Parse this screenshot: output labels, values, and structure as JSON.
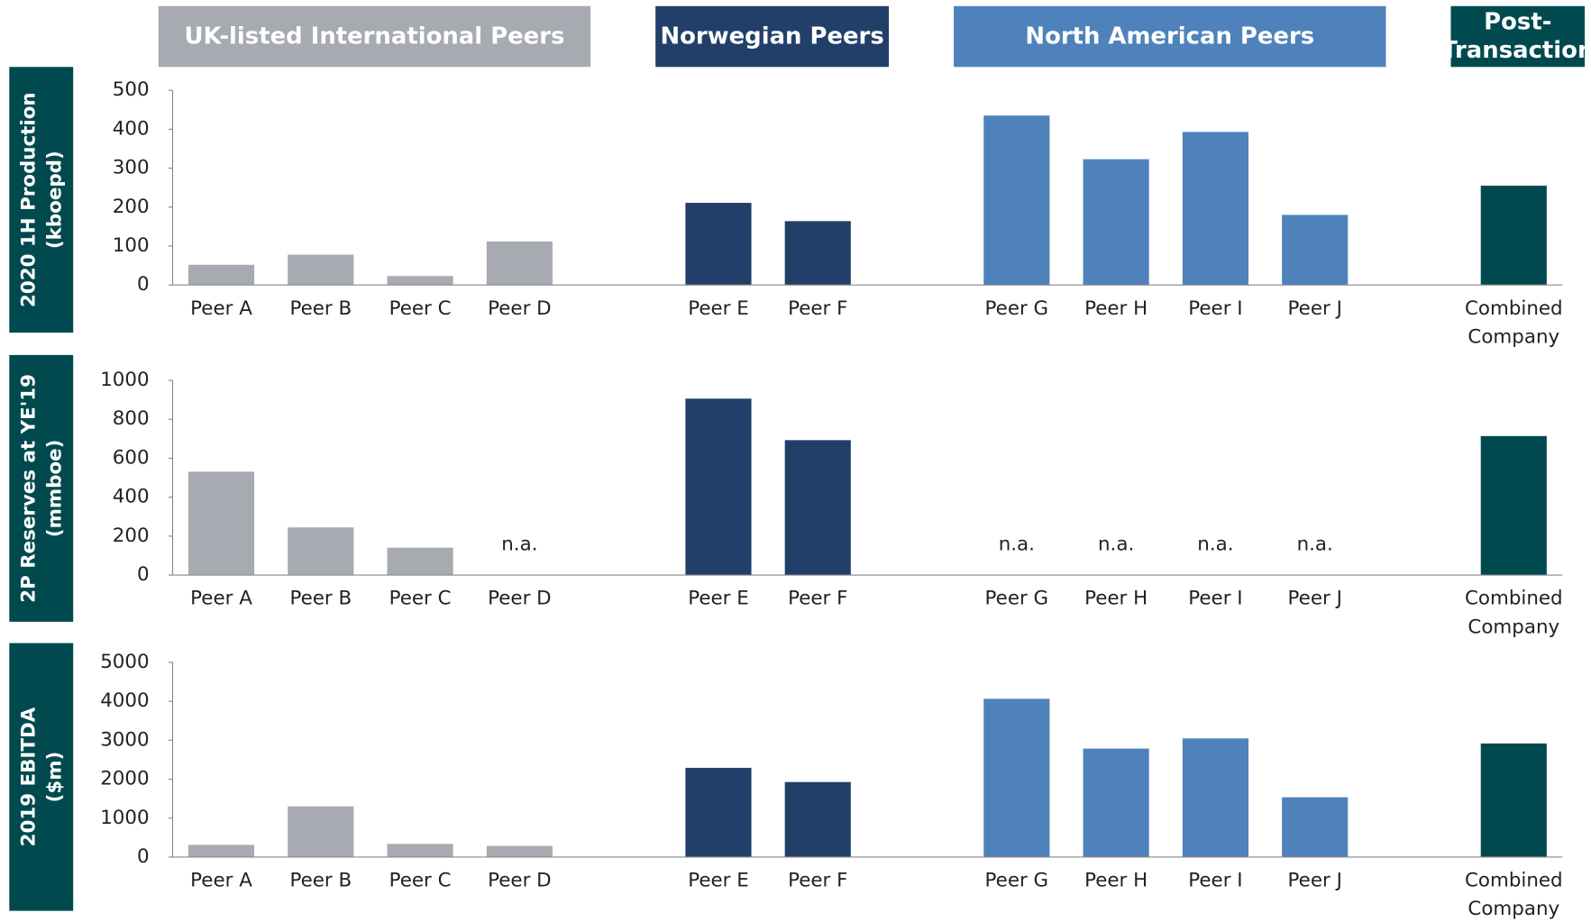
{
  "groups": [
    {
      "label": "UK-listed International Peers",
      "color": "#a7abb1",
      "members": [
        0,
        1,
        2,
        3
      ]
    },
    {
      "label": "Norwegian Peers",
      "color": "#223f69",
      "members": [
        4,
        5
      ]
    },
    {
      "label": "North American Peers",
      "color": "#4f82bb",
      "members": [
        6,
        7,
        8,
        9
      ]
    },
    {
      "label": "Post-Transaction",
      "color": "#004a4f",
      "members": [
        10
      ]
    }
  ],
  "chart_data": [
    {
      "type": "bar",
      "ylabel": "2020 1H Production (kboepd)",
      "categories": [
        "Peer A",
        "Peer B",
        "Peer C",
        "Peer D",
        "Peer E",
        "Peer F",
        "Peer G",
        "Peer H",
        "Peer I",
        "Peer J",
        "Combined Company"
      ],
      "values": [
        52,
        78,
        23,
        112,
        211,
        164,
        435,
        323,
        393,
        180,
        255
      ],
      "ylim": [
        0,
        500
      ],
      "yticks": [
        0,
        100,
        200,
        300,
        400,
        500
      ]
    },
    {
      "type": "bar",
      "ylabel": "2P Reserves at YE'19 (mmboe)",
      "categories": [
        "Peer A",
        "Peer B",
        "Peer C",
        "Peer D",
        "Peer E",
        "Peer F",
        "Peer G",
        "Peer H",
        "Peer I",
        "Peer J",
        "Combined Company"
      ],
      "values": [
        531,
        245,
        141,
        null,
        906,
        693,
        null,
        null,
        null,
        null,
        714
      ],
      "value_labels": [
        null,
        null,
        null,
        "n.a.",
        null,
        null,
        "n.a.",
        "n.a.",
        "n.a.",
        "n.a.",
        null
      ],
      "ylim": [
        0,
        1000
      ],
      "yticks": [
        0,
        200,
        400,
        600,
        800,
        1000
      ]
    },
    {
      "type": "bar",
      "ylabel": "2019 EBITDA ($m)",
      "categories": [
        "Peer A",
        "Peer B",
        "Peer C",
        "Peer D",
        "Peer E",
        "Peer F",
        "Peer G",
        "Peer H",
        "Peer I",
        "Peer J",
        "Combined Company"
      ],
      "values": [
        313,
        1302,
        339,
        286,
        2292,
        1927,
        4063,
        2786,
        3047,
        1536,
        2917
      ],
      "ylim": [
        0,
        5000
      ],
      "yticks": [
        0,
        1000,
        2000,
        3000,
        4000,
        5000
      ]
    }
  ]
}
